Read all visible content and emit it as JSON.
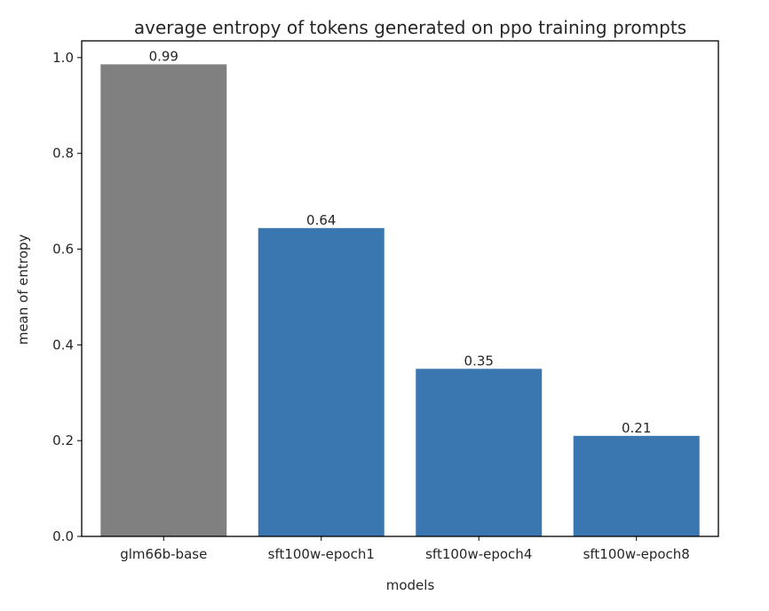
{
  "chart_data": {
    "type": "bar",
    "title": "average entropy of tokens generated on ppo training prompts",
    "xlabel": "models",
    "ylabel": "mean of entropy",
    "categories": [
      "glm66b-base",
      "sft100w-epoch1",
      "sft100w-epoch4",
      "sft100w-epoch8"
    ],
    "values": [
      0.986,
      0.644,
      0.35,
      0.21
    ],
    "data_labels": [
      "0.99",
      "0.64",
      "0.35",
      "0.21"
    ],
    "bar_colors": [
      "#808080",
      "#3a76af",
      "#3a76af",
      "#3a76af"
    ],
    "yticks": [
      0.0,
      0.2,
      0.4,
      0.6,
      0.8,
      1.0
    ],
    "ytick_labels": [
      "0.0",
      "0.2",
      "0.4",
      "0.6",
      "0.8",
      "1.0"
    ],
    "ylim": [
      0,
      1.035
    ],
    "grid": false,
    "legend": "none"
  }
}
